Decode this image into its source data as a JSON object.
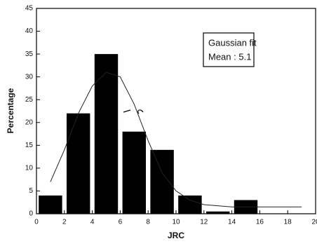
{
  "chart_data": {
    "type": "histogram",
    "bins": [
      0,
      2,
      4,
      6,
      8,
      10,
      12,
      14,
      16
    ],
    "values": [
      4,
      22,
      35,
      18,
      14,
      4,
      0.5,
      3
    ],
    "color": "#000000",
    "fit": {
      "x": [
        1,
        2,
        3,
        4,
        5,
        6,
        7,
        8,
        9,
        10,
        11,
        12,
        14,
        16,
        19
      ],
      "values": [
        7,
        14,
        22,
        28,
        31,
        30,
        24,
        16,
        9,
        5,
        3,
        2,
        1.5,
        1.5,
        1.5
      ]
    },
    "annotation": [
      "Gaussian fit",
      "Mean : 5.1"
    ],
    "xlabel": "JRC",
    "ylabel": "Percentage",
    "xlim": [
      0,
      20
    ],
    "ylim": [
      0,
      45
    ],
    "xticks": [
      0,
      2,
      4,
      6,
      8,
      10,
      12,
      14,
      16,
      18,
      20
    ],
    "yticks": [
      0,
      5,
      10,
      15,
      20,
      25,
      30,
      35,
      40,
      45
    ]
  }
}
